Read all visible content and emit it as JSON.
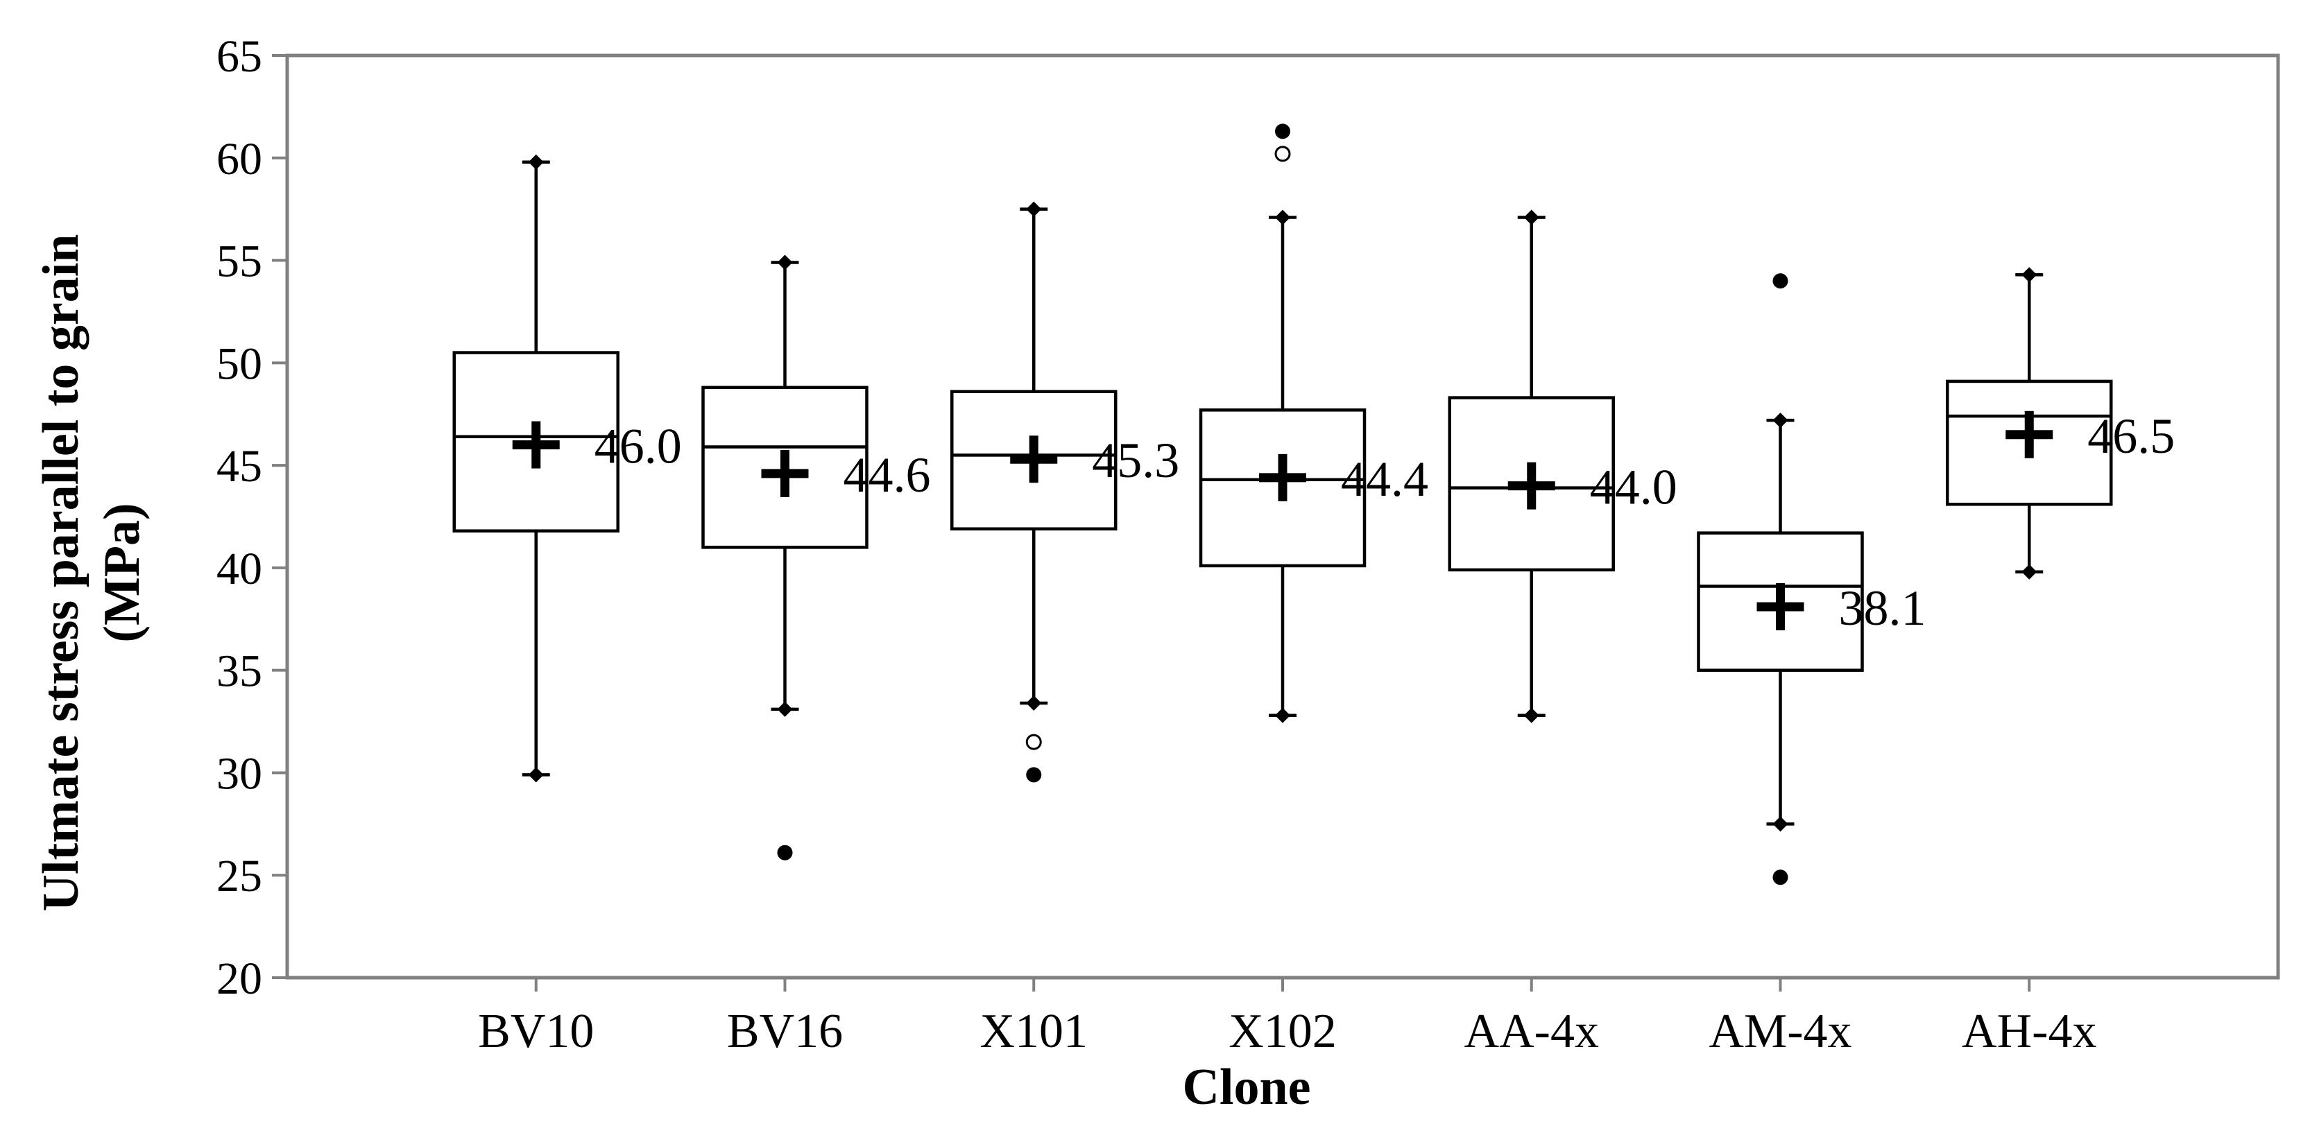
{
  "chart_data": {
    "type": "box",
    "title": "",
    "xlabel": "Clone",
    "ylabel_line1": "Ultmate stress parallel to grain",
    "ylabel_line2": "(MPa)",
    "ylim": [
      20,
      65
    ],
    "yticks": [
      20,
      25,
      30,
      35,
      40,
      45,
      50,
      55,
      60,
      65
    ],
    "grid": false,
    "legend": "none",
    "categories": [
      "BV10",
      "BV16",
      "X101",
      "X102",
      "AA-4x",
      "AM-4x",
      "AH-4x"
    ],
    "boxes": [
      {
        "category": "BV10",
        "whisker_low": 29.9,
        "q1": 41.8,
        "median": 46.4,
        "q3": 50.5,
        "whisker_high": 59.8,
        "mean": 46.0,
        "mean_label": "46.0",
        "outliers": []
      },
      {
        "category": "BV16",
        "whisker_low": 33.1,
        "q1": 41.0,
        "median": 45.9,
        "q3": 48.8,
        "whisker_high": 54.9,
        "mean": 44.6,
        "mean_label": "44.6",
        "outliers": [
          {
            "value": 26.1,
            "kind": "extreme"
          }
        ]
      },
      {
        "category": "X101",
        "whisker_low": 33.4,
        "q1": 41.9,
        "median": 45.5,
        "q3": 48.6,
        "whisker_high": 57.5,
        "mean": 45.3,
        "mean_label": "45.3",
        "outliers": [
          {
            "value": 31.5,
            "kind": "mild"
          },
          {
            "value": 29.9,
            "kind": "extreme"
          }
        ]
      },
      {
        "category": "X102",
        "whisker_low": 32.8,
        "q1": 40.1,
        "median": 44.3,
        "q3": 47.7,
        "whisker_high": 57.1,
        "mean": 44.4,
        "mean_label": "44.4",
        "outliers": [
          {
            "value": 61.3,
            "kind": "extreme"
          },
          {
            "value": 60.2,
            "kind": "mild"
          }
        ]
      },
      {
        "category": "AA-4x",
        "whisker_low": 32.8,
        "q1": 39.9,
        "median": 43.9,
        "q3": 48.3,
        "whisker_high": 57.1,
        "mean": 44.0,
        "mean_label": "44.0",
        "outliers": []
      },
      {
        "category": "AM-4x",
        "whisker_low": 27.5,
        "q1": 35.0,
        "median": 39.1,
        "q3": 41.7,
        "whisker_high": 47.2,
        "mean": 38.1,
        "mean_label": "38.1",
        "outliers": [
          {
            "value": 54.0,
            "kind": "extreme"
          },
          {
            "value": 24.9,
            "kind": "extreme"
          }
        ]
      },
      {
        "category": "AH-4x",
        "whisker_low": 39.8,
        "q1": 43.1,
        "median": 47.4,
        "q3": 49.1,
        "whisker_high": 54.3,
        "mean": 46.5,
        "mean_label": "46.5",
        "outliers": []
      }
    ],
    "colors": {
      "line": "#000000",
      "frame": "#808080",
      "background": "#ffffff"
    }
  }
}
